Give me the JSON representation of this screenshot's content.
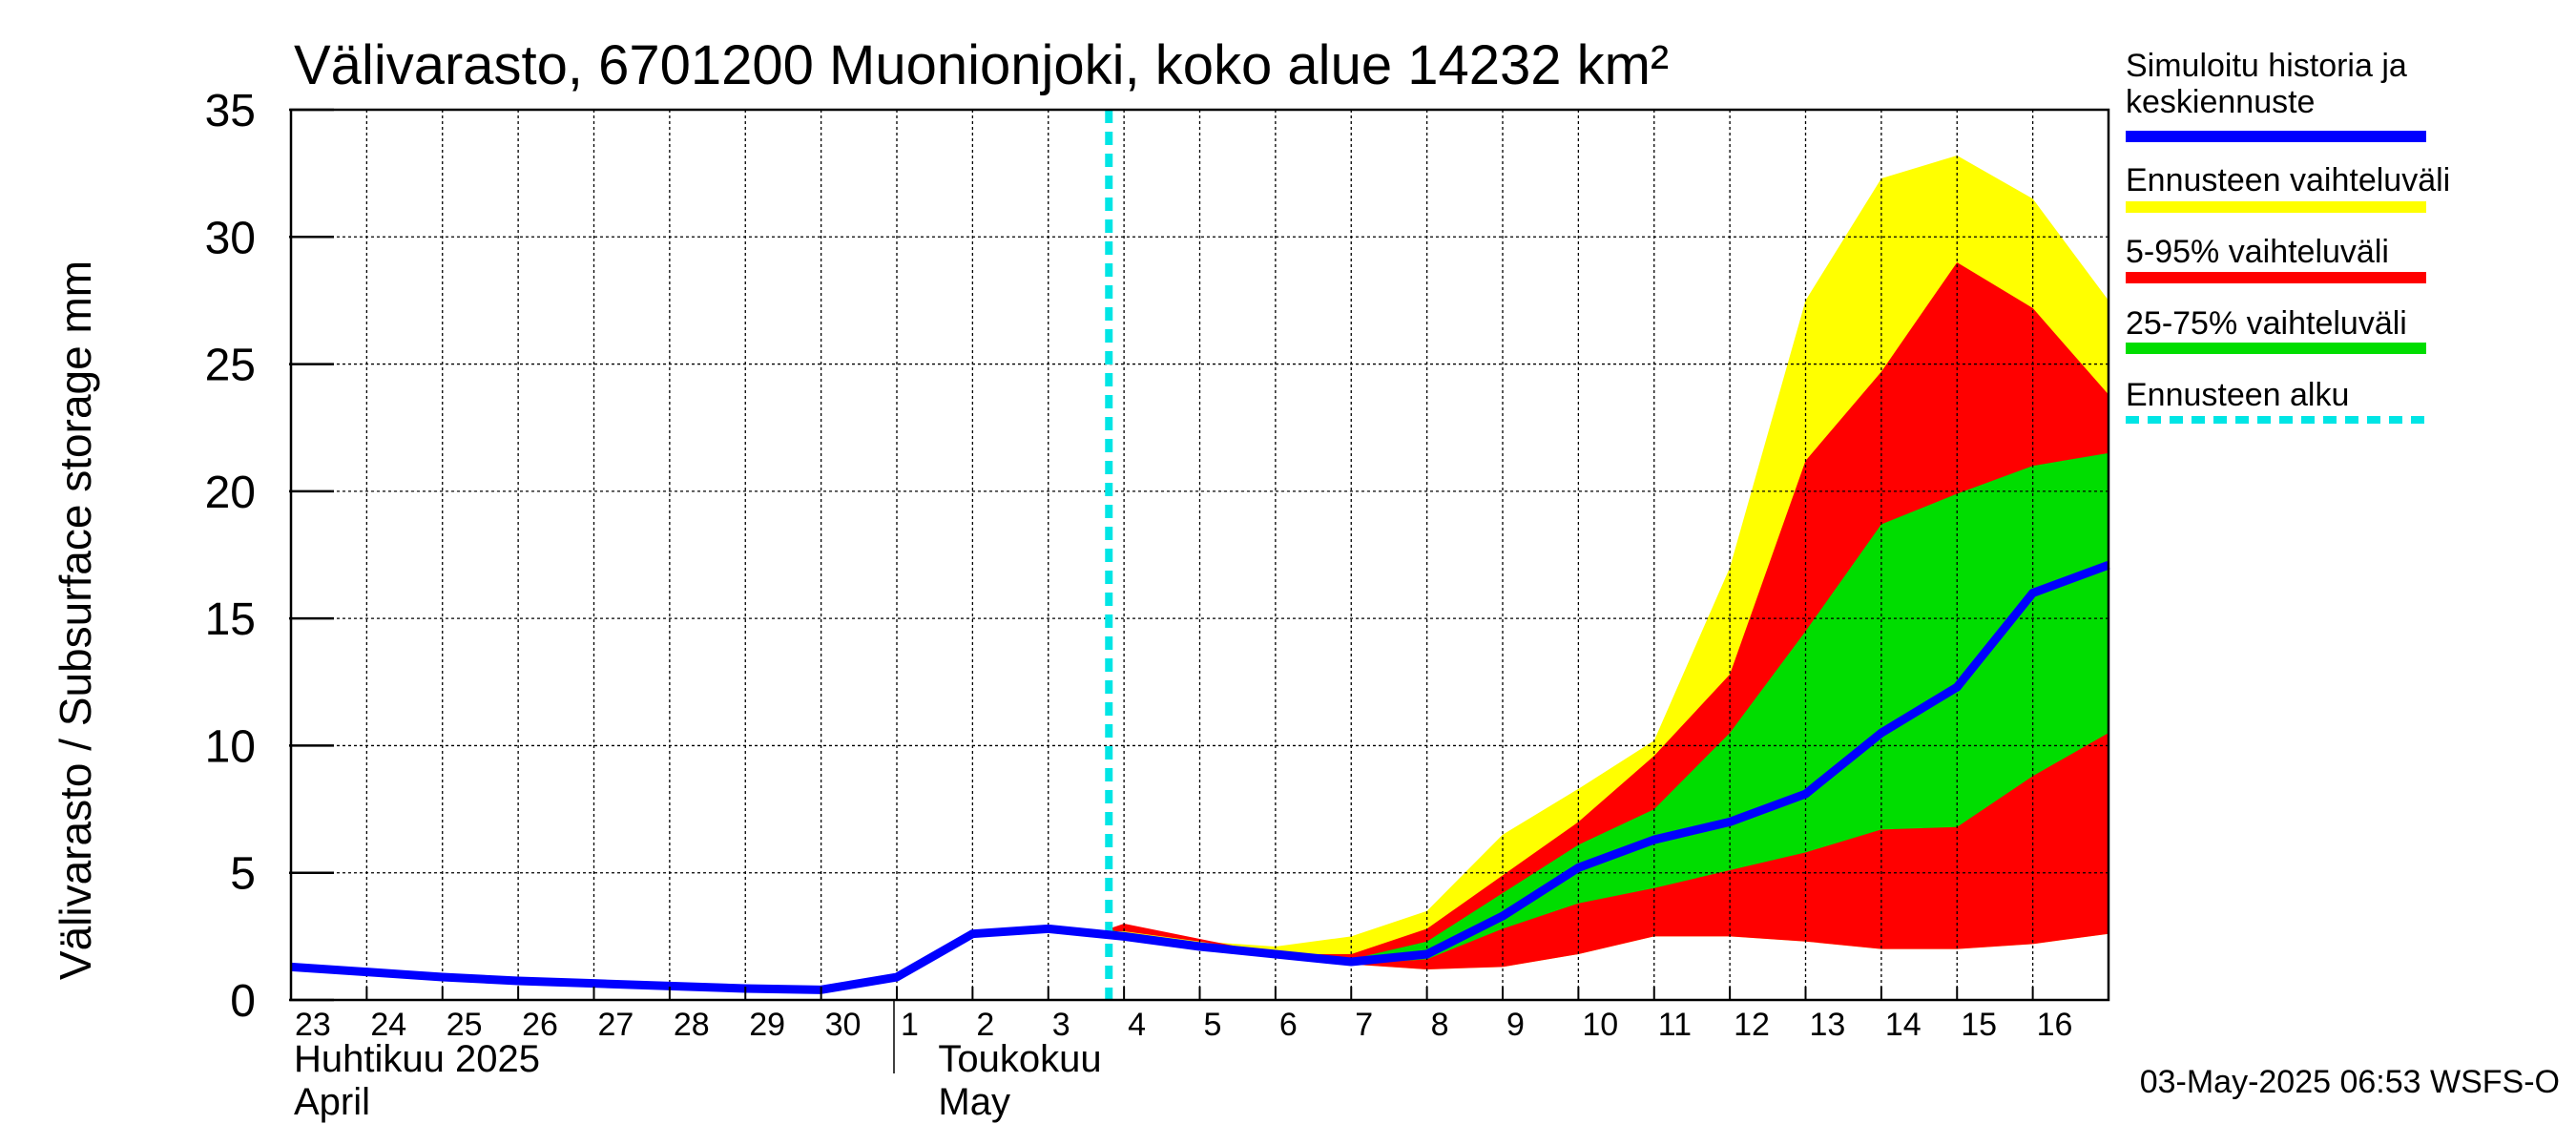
{
  "chart_data": {
    "type": "area",
    "title": "Välivarasto, 6701200 Muonionjoki, koko alue 14232 km²",
    "ylabel": "Välivarasto / Subsurface storage  mm",
    "ylim": [
      0,
      35
    ],
    "yticks": [
      0,
      5,
      10,
      15,
      20,
      25,
      30,
      35
    ],
    "x_axis": {
      "tick_labels": [
        "23",
        "24",
        "25",
        "26",
        "27",
        "28",
        "29",
        "30",
        "1",
        "2",
        "3",
        "4",
        "5",
        "6",
        "7",
        "8",
        "9",
        "10",
        "11",
        "12",
        "13",
        "14",
        "15",
        "16"
      ],
      "month_labels": [
        {
          "line1": "Huhtikuu  2025",
          "line2": "April"
        },
        {
          "line1": "Toukokuu",
          "line2": "May"
        }
      ]
    },
    "grid": true,
    "forecast_start_day": 10.8,
    "series": [
      {
        "name": "Ennusteen vaihteluväli",
        "color": "#ffff00",
        "x": [
          10.8,
          11,
          12,
          13,
          14,
          15,
          16,
          17,
          18,
          19,
          20,
          21,
          22,
          23,
          24
        ],
        "upper": [
          2.8,
          2.8,
          2.3,
          2.1,
          2.5,
          3.5,
          6.5,
          8.3,
          10.2,
          17.0,
          27.5,
          32.3,
          33.2,
          31.5,
          27.5
        ],
        "lower": [
          2.7,
          2.6,
          2.2,
          1.7,
          1.4,
          1.2,
          1.3,
          1.8,
          2.5,
          2.5,
          2.3,
          2.0,
          2.0,
          2.2,
          2.6
        ]
      },
      {
        "name": "5-95% vaihteluväli",
        "color": "#ff0000",
        "x": [
          10.8,
          11,
          12,
          13,
          14,
          15,
          16,
          17,
          18,
          19,
          20,
          21,
          22,
          23,
          24
        ],
        "upper": [
          2.8,
          3.0,
          2.4,
          1.8,
          1.8,
          2.8,
          4.9,
          7.0,
          9.6,
          12.8,
          21.2,
          24.7,
          29.0,
          27.2,
          23.8
        ],
        "lower": [
          2.7,
          2.7,
          2.3,
          1.8,
          1.4,
          1.2,
          1.3,
          1.8,
          2.5,
          2.5,
          2.3,
          2.0,
          2.0,
          2.2,
          2.6
        ]
      },
      {
        "name": "25-75% vaihteluväli",
        "color": "#00dd00",
        "x": [
          10.8,
          11,
          12,
          13,
          14,
          15,
          16,
          17,
          18,
          19,
          20,
          21,
          22,
          23,
          24
        ],
        "upper": [
          2.8,
          2.6,
          2.2,
          1.8,
          1.6,
          2.3,
          4.2,
          6.1,
          7.5,
          10.5,
          14.5,
          18.7,
          19.9,
          21.0,
          21.5
        ],
        "lower": [
          2.8,
          2.5,
          2.1,
          1.8,
          1.4,
          1.6,
          2.8,
          3.8,
          4.4,
          5.1,
          5.8,
          6.7,
          6.8,
          8.8,
          10.5
        ]
      },
      {
        "name": "Simuloitu historia ja keskiennuste",
        "color": "#0000ff",
        "x": [
          0,
          1,
          2,
          3,
          4,
          5,
          6,
          7,
          8,
          9,
          10,
          11,
          12,
          13,
          14,
          15,
          16,
          17,
          18,
          19,
          20,
          21,
          22,
          23,
          24
        ],
        "y": [
          1.3,
          1.1,
          0.9,
          0.75,
          0.65,
          0.55,
          0.45,
          0.4,
          0.9,
          2.6,
          2.8,
          2.5,
          2.1,
          1.8,
          1.5,
          1.8,
          3.3,
          5.2,
          6.3,
          7.0,
          8.1,
          10.5,
          12.3,
          16.0,
          17.1
        ]
      }
    ],
    "legend": [
      {
        "label": "Simuloitu historia ja",
        "label2": "keskiennuste",
        "color": "#0000ff",
        "style": "solid"
      },
      {
        "label": "Ennusteen vaihteluväli",
        "color": "#ffff00",
        "style": "solid"
      },
      {
        "label": "5-95% vaihteluväli",
        "color": "#ff0000",
        "style": "solid"
      },
      {
        "label": "25-75% vaihteluväli",
        "color": "#00dd00",
        "style": "solid"
      },
      {
        "label": "Ennusteen alku",
        "color": "#00e5e5",
        "style": "dashed"
      }
    ],
    "legend_position": "right"
  },
  "footer": "03-May-2025 06:53 WSFS-O"
}
